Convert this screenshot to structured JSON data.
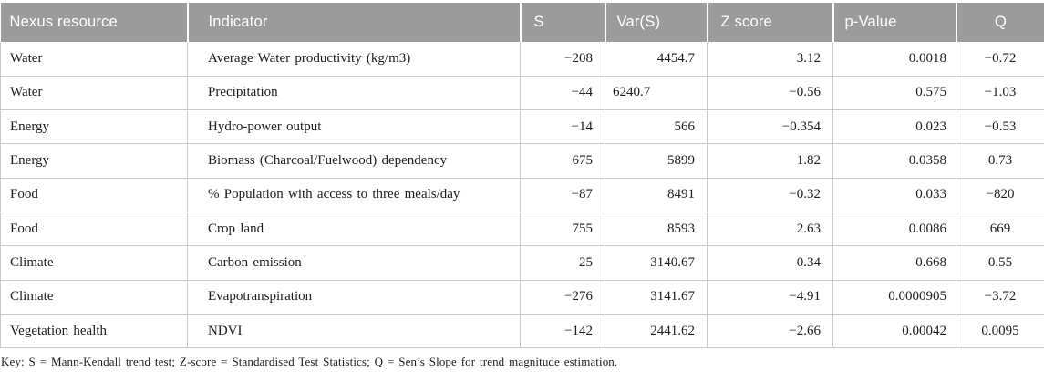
{
  "table": {
    "columns": [
      "Nexus resource",
      "Indicator",
      "S",
      "Var(S)",
      "Z score",
      "p-Value",
      "Q"
    ],
    "rows": [
      {
        "resource": "Water",
        "indicator": "Average Water productivity (kg/m3)",
        "s": "−208",
        "var_s": "4454.7",
        "z": "3.12",
        "p": "0.0018",
        "q": "−0.72"
      },
      {
        "resource": "Water",
        "indicator": "Precipitation",
        "s": "−44",
        "var_s": "6240.7",
        "z": "−0.56",
        "p": "0.575",
        "q": "−1.03"
      },
      {
        "resource": "Energy",
        "indicator": "Hydro-power output",
        "s": "−14",
        "var_s": "566",
        "z": "−0.354",
        "p": "0.023",
        "q": "−0.53"
      },
      {
        "resource": "Energy",
        "indicator": "Biomass (Charcoal/Fuelwood) dependency",
        "s": "675",
        "var_s": "5899",
        "z": "1.82",
        "p": "0.0358",
        "q": "0.73"
      },
      {
        "resource": "Food",
        "indicator": "% Population with access to three meals/day",
        "s": "−87",
        "var_s": "8491",
        "z": "−0.32",
        "p": "0.033",
        "q": "−820"
      },
      {
        "resource": "Food",
        "indicator": "Crop land",
        "s": "755",
        "var_s": "8593",
        "z": "2.63",
        "p": "0.0086",
        "q": "669"
      },
      {
        "resource": "Climate",
        "indicator": "Carbon emission",
        "s": "25",
        "var_s": "3140.67",
        "z": "0.34",
        "p": "0.668",
        "q": "0.55"
      },
      {
        "resource": "Climate",
        "indicator": "Evapotranspiration",
        "s": "−276",
        "var_s": "3141.67",
        "z": "−4.91",
        "p": "0.0000905",
        "q": "−3.72"
      },
      {
        "resource": "Vegetation health",
        "indicator": "NDVI",
        "s": "−142",
        "var_s": "2441.62",
        "z": "−2.66",
        "p": "0.00042",
        "q": "0.0095"
      }
    ],
    "footnote": "Key: S = Mann-Kendall trend test; Z-score = Standardised Test Statistics; Q = Sen’s Slope for trend magnitude estimation."
  },
  "colors": {
    "header_bg": "#9b9b9b",
    "header_text": "#ffffff",
    "border": "#c9c9c9",
    "body_text": "#1c1c1c",
    "background": "#ffffff"
  }
}
